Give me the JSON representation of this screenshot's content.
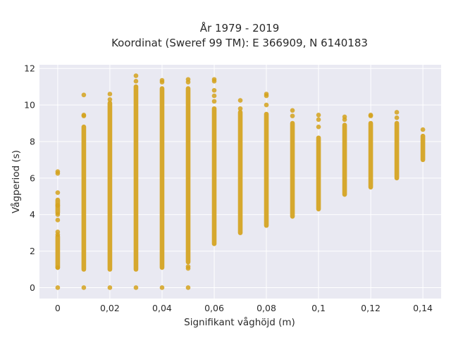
{
  "chart_data": {
    "type": "scatter",
    "title_line1": "År 1979 - 2019",
    "title_line2": "Koordinat (Sweref 99 TM): E 366909, N 6140183",
    "xlabel": "Signifikant våghöjd (m)",
    "ylabel": "Vågperiod (s)",
    "xlim": [
      -0.007,
      0.147
    ],
    "ylim": [
      -0.6,
      12.2
    ],
    "xticks": [
      0,
      0.02,
      0.04,
      0.06,
      0.08,
      0.1,
      0.12,
      0.14
    ],
    "xtick_labels": [
      "0",
      "0,02",
      "0,04",
      "0,06",
      "0,08",
      "0,1",
      "0,12",
      "0,14"
    ],
    "yticks": [
      0,
      2,
      4,
      6,
      8,
      10,
      12
    ],
    "ytick_labels": [
      "0",
      "2",
      "4",
      "6",
      "8",
      "10",
      "12"
    ],
    "grid": true,
    "marker_color": "#d4a21d",
    "plot_background": "#e9e9f2",
    "columns": [
      {
        "x": 0,
        "segments": [
          [
            1.1,
            2.8
          ],
          [
            4.1,
            4.8
          ]
        ],
        "points": [
          0,
          1.1,
          2.9,
          3.05,
          3.7,
          4.0,
          4.5,
          5.2,
          6.25,
          6.35
        ]
      },
      {
        "x": 0.01,
        "segments": [
          [
            1.0,
            8.8
          ]
        ],
        "points": [
          0,
          9.4,
          9.45,
          10.55
        ]
      },
      {
        "x": 0.02,
        "segments": [
          [
            1.0,
            10.1
          ]
        ],
        "points": [
          0,
          10.3,
          10.6
        ]
      },
      {
        "x": 0.03,
        "segments": [
          [
            1.0,
            11.0
          ]
        ],
        "points": [
          0,
          11.3,
          11.6
        ]
      },
      {
        "x": 0.04,
        "segments": [
          [
            1.1,
            10.9
          ]
        ],
        "points": [
          0,
          11.25,
          11.35
        ]
      },
      {
        "x": 0.05,
        "segments": [
          [
            1.4,
            10.9
          ]
        ],
        "points": [
          0,
          1.05,
          1.15,
          11.25,
          11.4
        ]
      },
      {
        "x": 0.06,
        "segments": [
          [
            2.4,
            9.8
          ]
        ],
        "points": [
          10.2,
          10.5,
          10.8,
          11.3,
          11.4
        ]
      },
      {
        "x": 0.07,
        "segments": [
          [
            3.0,
            9.6
          ]
        ],
        "points": [
          9.8,
          10.25
        ]
      },
      {
        "x": 0.08,
        "segments": [
          [
            3.4,
            9.5
          ]
        ],
        "points": [
          10.0,
          10.5,
          10.6
        ]
      },
      {
        "x": 0.09,
        "segments": [
          [
            3.9,
            9.0
          ]
        ],
        "points": [
          9.4,
          9.7
        ]
      },
      {
        "x": 0.1,
        "segments": [
          [
            4.3,
            8.2
          ]
        ],
        "points": [
          8.8,
          9.2,
          9.45
        ]
      },
      {
        "x": 0.11,
        "segments": [
          [
            5.1,
            8.9
          ]
        ],
        "points": [
          9.2,
          9.35
        ]
      },
      {
        "x": 0.12,
        "segments": [
          [
            5.5,
            9.0
          ]
        ],
        "points": [
          9.4,
          9.45
        ]
      },
      {
        "x": 0.13,
        "segments": [
          [
            6.0,
            9.0
          ]
        ],
        "points": [
          9.3,
          9.6
        ]
      },
      {
        "x": 0.14,
        "segments": [
          [
            7.0,
            8.3
          ]
        ],
        "points": [
          8.65
        ]
      }
    ]
  }
}
